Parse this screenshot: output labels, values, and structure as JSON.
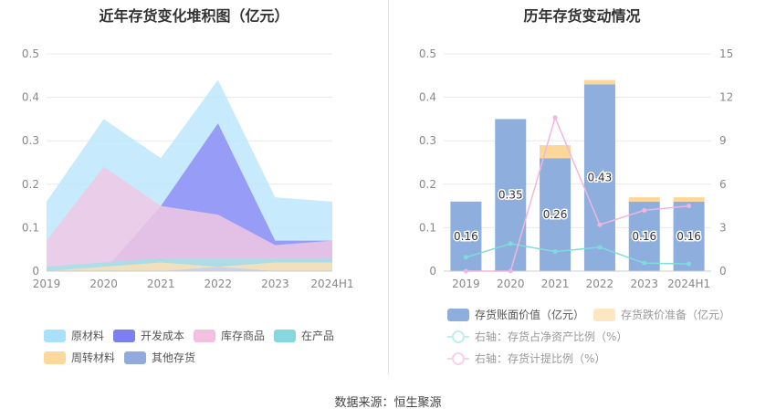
{
  "source": "数据来源：恒生聚源",
  "chart_data": [
    {
      "type": "area",
      "title": "近年存货变化堆积图（亿元）",
      "categories": [
        "2019",
        "2020",
        "2021",
        "2022",
        "2023",
        "2024H1"
      ],
      "ylim": [
        0,
        0.5
      ],
      "yticks": [
        "0",
        "0.1",
        "0.2",
        "0.3",
        "0.4",
        "0.5"
      ],
      "stacked": false,
      "series": [
        {
          "name": "原材料",
          "color": "#bde7fb",
          "values": [
            0.16,
            0.35,
            0.26,
            0.44,
            0.17,
            0.16
          ]
        },
        {
          "name": "开发成本",
          "color": "#8e8ef5",
          "values": [
            0,
            0,
            0.15,
            0.34,
            0.07,
            0.07
          ]
        },
        {
          "name": "库存商品",
          "color": "#f0c8e4",
          "values": [
            0.07,
            0.24,
            0.15,
            0.13,
            0.06,
            0.07
          ]
        },
        {
          "name": "在产品",
          "color": "#a3e0e6",
          "values": [
            0.01,
            0.02,
            0.03,
            0.03,
            0.03,
            0.03
          ]
        },
        {
          "name": "周转材料",
          "color": "#fbe2b4",
          "values": [
            0,
            0.01,
            0.02,
            0.01,
            0.02,
            0.02
          ]
        },
        {
          "name": "其他存货",
          "color": "#c3cff0",
          "values": [
            0,
            0,
            0,
            0.01,
            0,
            0
          ]
        }
      ],
      "legend_position": "bottom",
      "grid": true
    },
    {
      "type": "bar",
      "title": "历年存货变动情况",
      "categories": [
        "2019",
        "2020",
        "2021",
        "2022",
        "2023",
        "2024H1"
      ],
      "ylim": [
        0,
        0.5
      ],
      "yticks": [
        "0",
        "0.1",
        "0.2",
        "0.3",
        "0.4",
        "0.5"
      ],
      "y2lim": [
        0,
        15
      ],
      "y2ticks": [
        "0",
        "3",
        "6",
        "9",
        "12",
        "15"
      ],
      "bars": [
        {
          "name": "存货账面价值（亿元）",
          "color": "#8eaedd",
          "values": [
            0.16,
            0.35,
            0.26,
            0.43,
            0.16,
            0.16
          ]
        },
        {
          "name": "存货跌价准备（亿元）",
          "color": "#fcd79a",
          "values": [
            0,
            0,
            0.03,
            0.01,
            0.01,
            0.01
          ]
        }
      ],
      "data_labels": [
        "0.16",
        "0.35",
        "0.26",
        "0.43",
        "0.16",
        "0.16"
      ],
      "lines": [
        {
          "name": "右轴：存货占净资产比例（%）",
          "color": "#7fdcdc",
          "values": [
            0.95,
            1.9,
            1.35,
            1.65,
            0.55,
            0.5
          ]
        },
        {
          "name": "右轴：存货计提比例（%）",
          "color": "#f1b6dd",
          "values": [
            0,
            0,
            10.6,
            3.2,
            4.2,
            4.5
          ]
        }
      ],
      "legend_position": "bottom",
      "grid": true
    }
  ]
}
